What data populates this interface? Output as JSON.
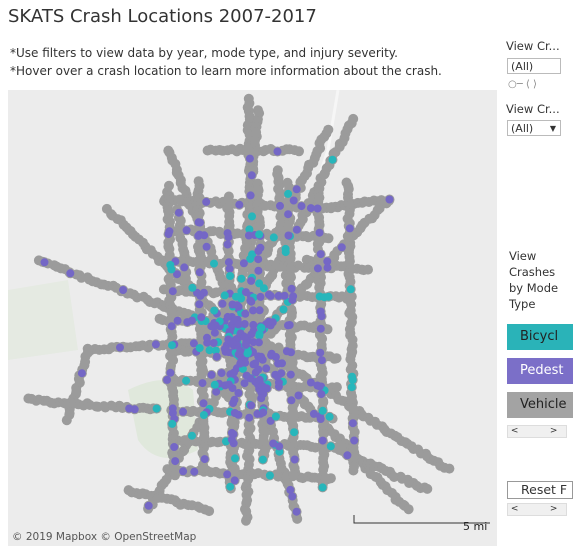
{
  "header": {
    "title": "SKATS Crash Locations 2007-2017",
    "notes": [
      "*Use filters to view data by year, mode type, and injury severity.",
      "*Hover over a crash location to learn more information about the crash."
    ]
  },
  "filters": [
    {
      "label": "View Cr...",
      "value": "(All)"
    },
    {
      "label": "View Cr...",
      "value": "(All)"
    }
  ],
  "legend": {
    "title": "View Crashes by Mode Type",
    "items": [
      "Bicycl",
      "Pedest",
      "Vehicle"
    ]
  },
  "reset": "Reset F",
  "map": {
    "attribution": "© 2019 Mapbox © OpenStreetMap",
    "scale": "5 mi"
  }
}
